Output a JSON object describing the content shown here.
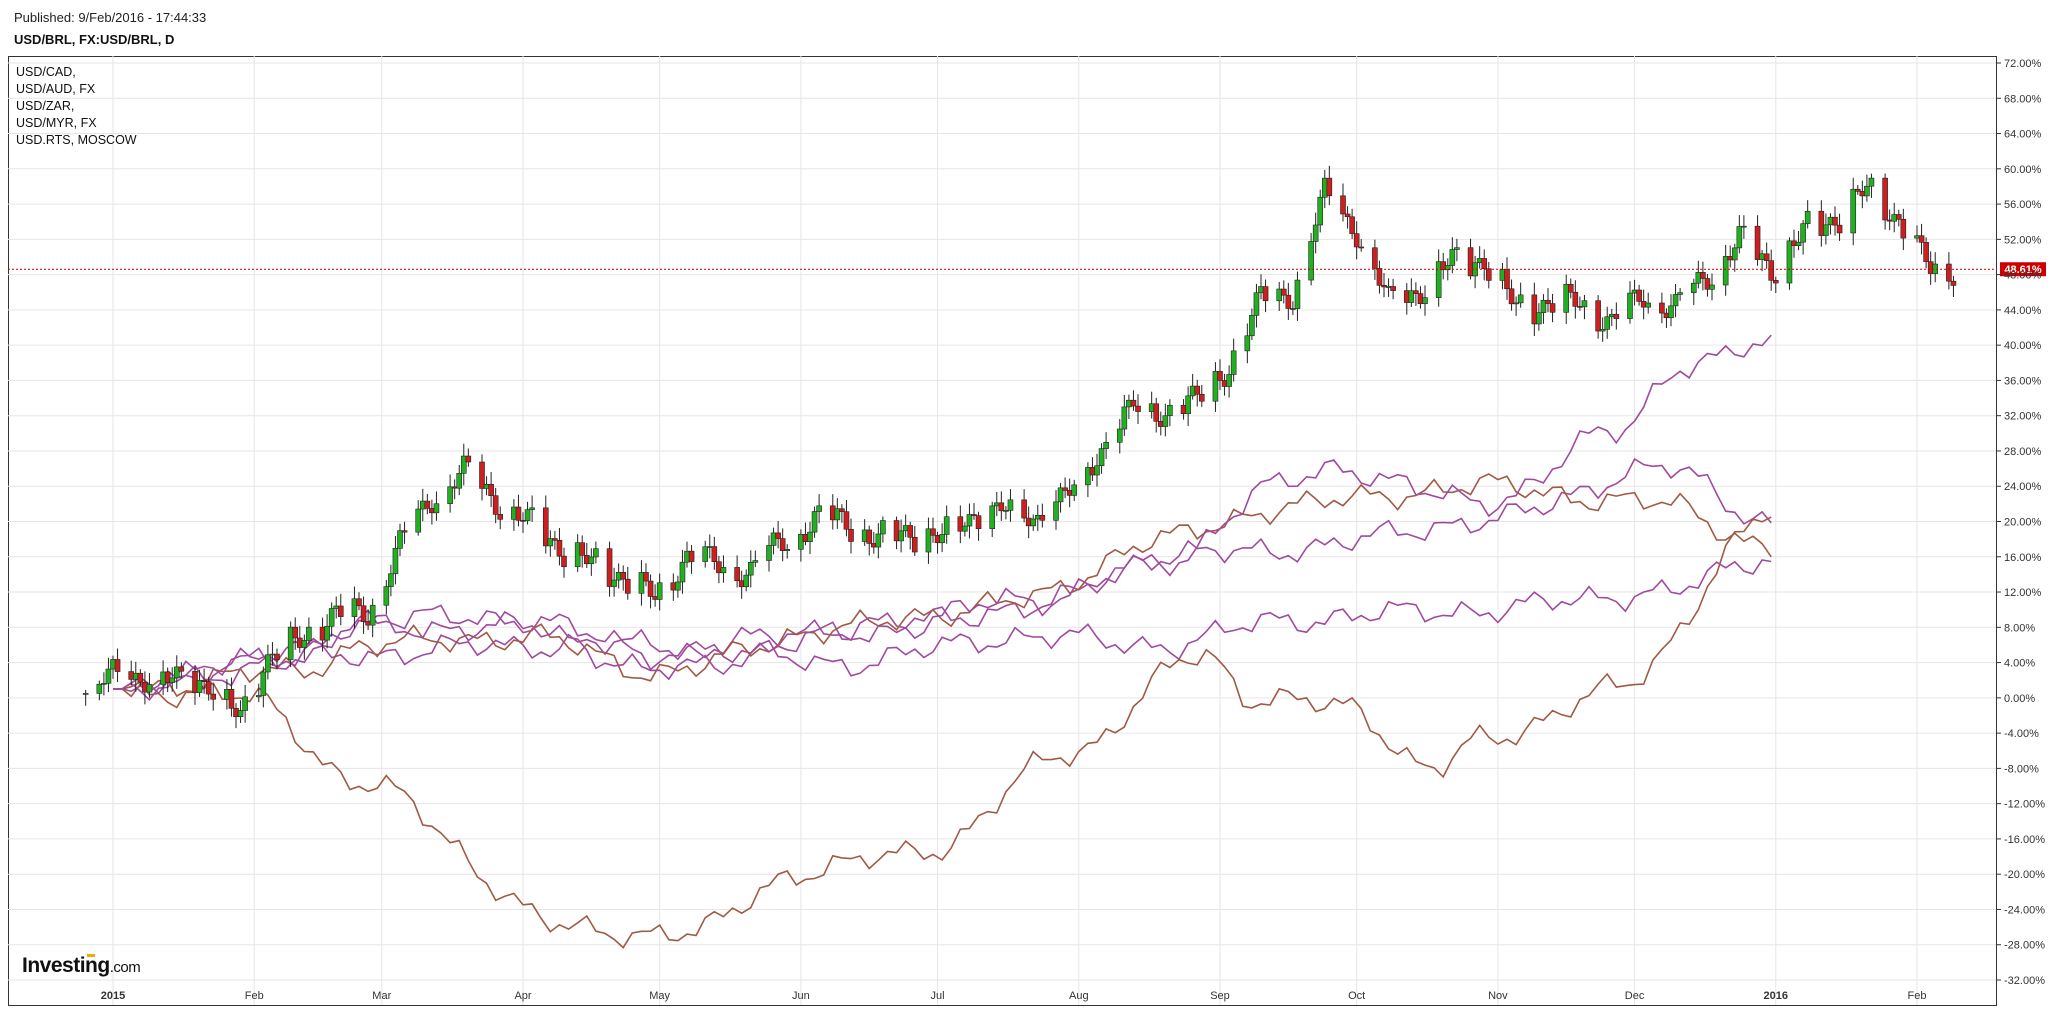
{
  "header": {
    "published": "Published: 9/Feb/2016 - 17:44:33",
    "symbol": "USD/BRL, FX:USD/BRL, D"
  },
  "legend": [
    "USD/CAD,",
    "USD/AUD, FX",
    "USD/ZAR,",
    "USD/MYR, FX",
    "USD.RTS, MOSCOW"
  ],
  "brand": {
    "name": "Investing",
    "suffix": ".com"
  },
  "last_value_label": "48.61%",
  "colors": {
    "up_candle": "#22b022",
    "down_candle": "#cc1f1f",
    "last_line": "#cc0000",
    "brown": "#a05a44",
    "purple": "#a04a9e",
    "grid": "#e6e6e6"
  },
  "chart_data": {
    "type": "line",
    "title": "USD/BRL, FX:USD/BRL, D",
    "y_unit": "%",
    "ylim": [
      -32,
      72
    ],
    "y_ticks": [
      "72.00%",
      "68.00%",
      "64.00%",
      "60.00%",
      "56.00%",
      "52.00%",
      "48.00%",
      "44.00%",
      "40.00%",
      "36.00%",
      "32.00%",
      "28.00%",
      "24.00%",
      "20.00%",
      "16.00%",
      "12.00%",
      "8.00%",
      "4.00%",
      "0.00%",
      "-4.00%",
      "-8.00%",
      "-12.00%",
      "-16.00%",
      "-20.00%",
      "-24.00%",
      "-28.00%",
      "-32.00%"
    ],
    "x_labels": [
      "2015",
      "Feb",
      "Mar",
      "Apr",
      "May",
      "Jun",
      "Jul",
      "Aug",
      "Sep",
      "Oct",
      "Nov",
      "Dec",
      "2016",
      "Feb"
    ],
    "x_domain": [
      "2015-01-01",
      "2016-02-10"
    ],
    "x_label_dates": [
      "2015-01-01",
      "2015-02-01",
      "2015-03-01",
      "2015-04-01",
      "2015-05-01",
      "2015-06-01",
      "2015-07-01",
      "2015-08-01",
      "2015-09-01",
      "2015-10-01",
      "2015-11-01",
      "2015-12-01",
      "2016-01-01",
      "2016-02-01"
    ],
    "grid": true,
    "legend_position": "top-left",
    "last_value": 48.61,
    "candles_close": [
      [
        "2014-12-26",
        0.5
      ],
      [
        "2015-01-01",
        2.8
      ],
      [
        "2015-01-08",
        2.0
      ],
      [
        "2015-01-15",
        2.5
      ],
      [
        "2015-01-22",
        1.0
      ],
      [
        "2015-01-29",
        -1.5
      ],
      [
        "2015-02-05",
        4.5
      ],
      [
        "2015-02-12",
        7.5
      ],
      [
        "2015-02-19",
        9.0
      ],
      [
        "2015-02-26",
        10.0
      ],
      [
        "2015-03-05",
        17.0
      ],
      [
        "2015-03-12",
        23.0
      ],
      [
        "2015-03-19",
        25.5
      ],
      [
        "2015-03-26",
        22.5
      ],
      [
        "2015-04-02",
        20.0
      ],
      [
        "2015-04-09",
        17.0
      ],
      [
        "2015-04-16",
        15.5
      ],
      [
        "2015-04-23",
        13.5
      ],
      [
        "2015-04-30",
        11.5
      ],
      [
        "2015-05-07",
        16.0
      ],
      [
        "2015-05-14",
        15.0
      ],
      [
        "2015-05-21",
        14.5
      ],
      [
        "2015-05-28",
        17.5
      ],
      [
        "2015-06-04",
        20.5
      ],
      [
        "2015-06-11",
        19.5
      ],
      [
        "2015-06-18",
        18.5
      ],
      [
        "2015-06-25",
        18.0
      ],
      [
        "2015-07-02",
        19.0
      ],
      [
        "2015-07-09",
        20.0
      ],
      [
        "2015-07-16",
        22.0
      ],
      [
        "2015-07-23",
        20.0
      ],
      [
        "2015-07-30",
        23.5
      ],
      [
        "2015-08-06",
        28.0
      ],
      [
        "2015-08-13",
        33.0
      ],
      [
        "2015-08-20",
        32.5
      ],
      [
        "2015-08-27",
        33.5
      ],
      [
        "2015-09-03",
        38.0
      ],
      [
        "2015-09-10",
        45.0
      ],
      [
        "2015-09-17",
        46.0
      ],
      [
        "2015-09-24",
        57.0
      ],
      [
        "2015-10-01",
        53.0
      ],
      [
        "2015-10-08",
        45.0
      ],
      [
        "2015-10-15",
        46.0
      ],
      [
        "2015-10-22",
        50.0
      ],
      [
        "2015-10-29",
        49.0
      ],
      [
        "2015-11-05",
        45.0
      ],
      [
        "2015-11-12",
        44.0
      ],
      [
        "2015-11-19",
        45.5
      ],
      [
        "2015-11-26",
        42.0
      ],
      [
        "2015-12-03",
        46.0
      ],
      [
        "2015-12-10",
        44.0
      ],
      [
        "2015-12-17",
        48.0
      ],
      [
        "2015-12-24",
        52.0
      ],
      [
        "2015-12-31",
        48.5
      ],
      [
        "2016-01-07",
        53.0
      ],
      [
        "2016-01-14",
        54.0
      ],
      [
        "2016-01-21",
        58.0
      ],
      [
        "2016-01-28",
        54.0
      ],
      [
        "2016-02-04",
        48.6
      ],
      [
        "2016-02-09",
        48.61
      ]
    ],
    "series": [
      {
        "values": [
          [
            0,
            1
          ],
          [
            40,
            4
          ],
          [
            55,
            5
          ],
          [
            90,
            6
          ],
          [
            120,
            6
          ],
          [
            160,
            4
          ],
          [
            200,
            7
          ],
          [
            230,
            6
          ],
          [
            260,
            9
          ],
          [
            300,
            10
          ],
          [
            340,
            12
          ],
          [
            365,
            16
          ]
        ]
      },
      {
        "values": [
          [
            0,
            1
          ],
          [
            40,
            5
          ],
          [
            55,
            9
          ],
          [
            90,
            9
          ],
          [
            120,
            5
          ],
          [
            160,
            8
          ],
          [
            200,
            10
          ],
          [
            230,
            16
          ],
          [
            260,
            17
          ],
          [
            300,
            20
          ],
          [
            340,
            26
          ],
          [
            365,
            20
          ]
        ]
      },
      {
        "values": [
          [
            0,
            1
          ],
          [
            40,
            3
          ],
          [
            55,
            6
          ],
          [
            90,
            7
          ],
          [
            120,
            3
          ],
          [
            160,
            8
          ],
          [
            200,
            11
          ],
          [
            230,
            18
          ],
          [
            260,
            22
          ],
          [
            300,
            24
          ],
          [
            340,
            22
          ],
          [
            365,
            17
          ]
        ]
      },
      {
        "values": [
          [
            0,
            1
          ],
          [
            30,
            0
          ],
          [
            55,
            -10
          ],
          [
            100,
            -26
          ],
          [
            125,
            -27
          ],
          [
            150,
            -20
          ],
          [
            180,
            -17
          ],
          [
            210,
            -6
          ],
          [
            240,
            5
          ],
          [
            250,
            0
          ],
          [
            270,
            -1
          ],
          [
            290,
            -8
          ],
          [
            300,
            -5
          ],
          [
            330,
            1
          ],
          [
            365,
            21
          ]
        ]
      },
      {
        "values": [
          [
            0,
            1
          ],
          [
            40,
            5
          ],
          [
            55,
            8
          ],
          [
            90,
            8
          ],
          [
            120,
            3
          ],
          [
            160,
            7
          ],
          [
            200,
            11
          ],
          [
            230,
            15
          ],
          [
            255,
            24
          ],
          [
            270,
            26
          ],
          [
            300,
            22
          ],
          [
            330,
            30
          ],
          [
            345,
            38
          ],
          [
            365,
            40
          ]
        ]
      }
    ]
  }
}
